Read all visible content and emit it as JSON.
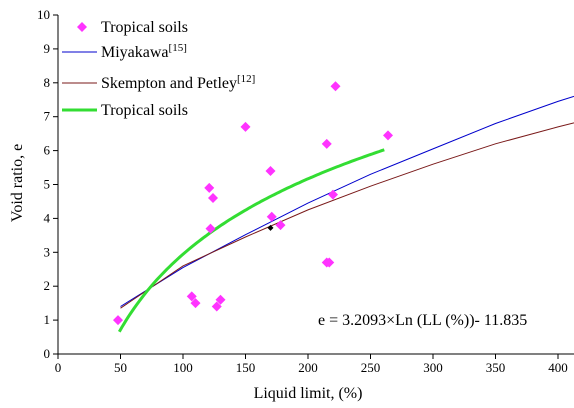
{
  "chart_data": {
    "type": "scatter",
    "xlabel": "Liquid limit, (%)",
    "ylabel": "Void ratio, e",
    "xlim": [
      0,
      400
    ],
    "ylim": [
      0,
      10
    ],
    "x_ticks": [
      "0",
      "50",
      "100",
      "150",
      "200",
      "250",
      "300",
      "350",
      "400"
    ],
    "y_ticks": [
      "0",
      "1",
      "2",
      "3",
      "4",
      "5",
      "6",
      "7",
      "8",
      "9",
      "10"
    ],
    "grid": false,
    "legend_position": "top-left",
    "equation": "e = 3.2093×Ln (LL (%))- 11.835",
    "series": [
      {
        "name": "Tropical soils",
        "type": "scatter",
        "marker": "diamond",
        "color": "#ff33ff",
        "points": [
          [
            48,
            1.0
          ],
          [
            107,
            1.7
          ],
          [
            110,
            1.5
          ],
          [
            127,
            1.4
          ],
          [
            130,
            1.6
          ],
          [
            122,
            3.7
          ],
          [
            121,
            4.9
          ],
          [
            124,
            4.6
          ],
          [
            150,
            6.7
          ],
          [
            170,
            5.4
          ],
          [
            171,
            4.05
          ],
          [
            178,
            3.8
          ],
          [
            215,
            2.7
          ],
          [
            217,
            2.7
          ],
          [
            215,
            6.2
          ],
          [
            220,
            4.7
          ],
          [
            222,
            7.9
          ],
          [
            264,
            6.45
          ]
        ]
      },
      {
        "name": "Miyakawa[15]",
        "type": "line",
        "color": "#0000cc",
        "points": [
          [
            50,
            1.4
          ],
          [
            100,
            2.55
          ],
          [
            150,
            3.52
          ],
          [
            200,
            4.45
          ],
          [
            250,
            5.3
          ],
          [
            300,
            6.05
          ],
          [
            350,
            6.8
          ],
          [
            400,
            7.45
          ],
          [
            413,
            7.6
          ]
        ]
      },
      {
        "name": "Skempton and Petley[12]",
        "type": "line",
        "color": "#7a1a1a",
        "points": [
          [
            50,
            1.35
          ],
          [
            100,
            2.6
          ],
          [
            150,
            3.45
          ],
          [
            200,
            4.25
          ],
          [
            250,
            4.95
          ],
          [
            300,
            5.6
          ],
          [
            350,
            6.2
          ],
          [
            400,
            6.7
          ],
          [
            413,
            6.82
          ]
        ]
      },
      {
        "name": "Tropical soils",
        "type": "line",
        "color": "#33dd33",
        "fit": "log",
        "a": 3.2093,
        "b": -11.835,
        "x_range": [
          49,
          262
        ]
      }
    ]
  }
}
